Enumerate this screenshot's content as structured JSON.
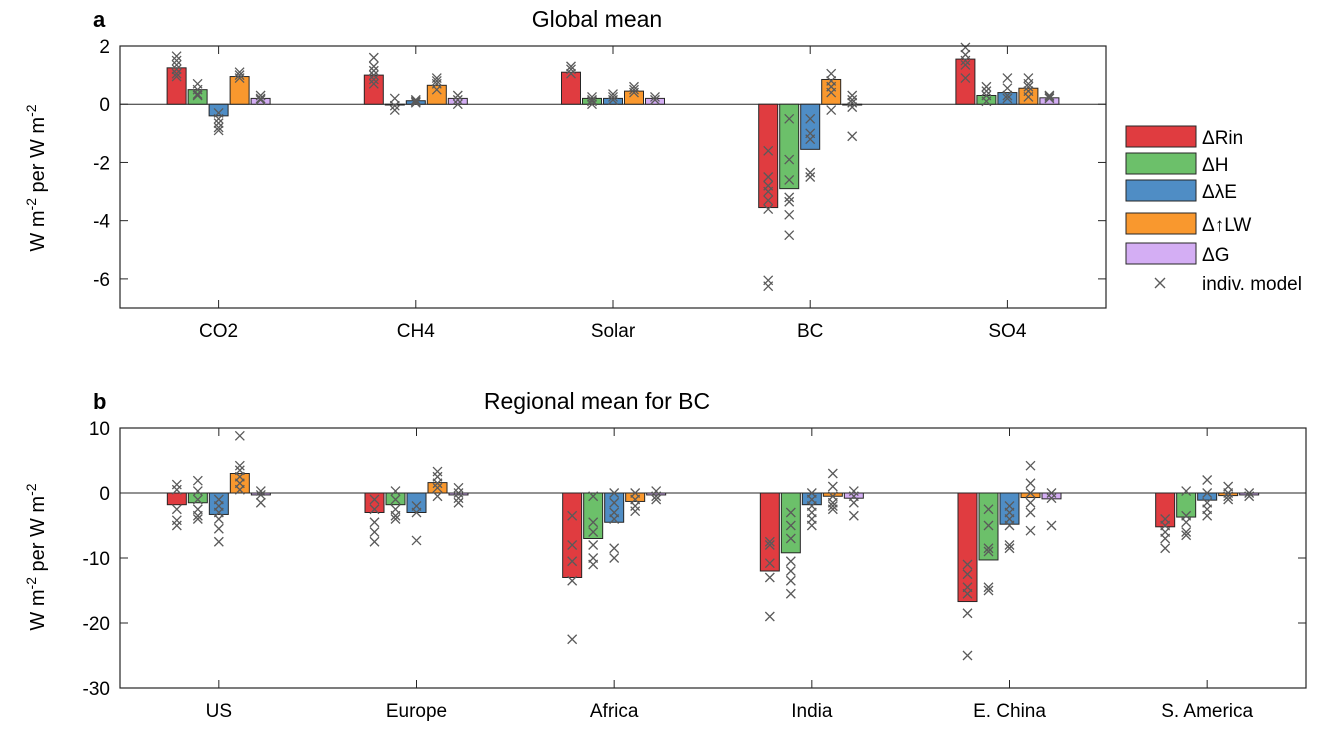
{
  "legend": {
    "labels": [
      "ΔRin",
      "ΔH",
      "ΔλE",
      "Δ↑LW",
      "ΔG"
    ],
    "marker_label": "indiv. model"
  },
  "colors": {
    "series": [
      "#e03c40",
      "#6cc06a",
      "#4f8dc5",
      "#f9982e",
      "#d4aef4"
    ],
    "marker": "#5a5a5a",
    "axis": "#262626"
  },
  "chart_data": [
    {
      "type": "bar",
      "panel_letter": "a",
      "title": "Global mean",
      "ylabel": "W m-2 per W m-2",
      "ylabel_parts": [
        "W m",
        "-2",
        " per W m",
        "-2"
      ],
      "ylim": [
        -7,
        2
      ],
      "yticks": [
        2,
        0,
        -2,
        -4,
        -6
      ],
      "categories": [
        "CO2",
        "CH4",
        "Solar",
        "BC",
        "SO4"
      ],
      "series": [
        {
          "name": "ΔRin",
          "values": [
            1.25,
            1.0,
            1.1,
            -3.55,
            1.55
          ]
        },
        {
          "name": "ΔH",
          "values": [
            0.5,
            0.0,
            0.2,
            -2.9,
            0.3
          ]
        },
        {
          "name": "ΔλE",
          "values": [
            -0.4,
            0.12,
            0.2,
            -1.55,
            0.4
          ]
        },
        {
          "name": "Δ↑LW",
          "values": [
            0.95,
            0.65,
            0.45,
            0.85,
            0.55
          ]
        },
        {
          "name": "ΔG",
          "values": [
            0.2,
            0.2,
            0.2,
            0.0,
            0.22
          ]
        }
      ],
      "individual_models": [
        [
          [
            1.65,
            1.5,
            1.35,
            1.2,
            1.05,
            0.95
          ],
          [
            0.7,
            0.5,
            0.35,
            0.3
          ],
          [
            -0.3,
            -0.5,
            -0.65,
            -0.8,
            -0.9
          ],
          [
            1.1,
            1.0,
            0.9
          ],
          [
            0.3,
            0.2,
            0.15
          ]
        ],
        [
          [
            1.6,
            1.3,
            1.15,
            1.0,
            0.85,
            0.7
          ],
          [
            0.2,
            -0.05,
            -0.2
          ],
          [
            0.15,
            0.1,
            0.05
          ],
          [
            0.9,
            0.8,
            0.7,
            0.5
          ],
          [
            0.3,
            0.15,
            0.0
          ]
        ],
        [
          [
            1.3,
            1.2,
            1.05
          ],
          [
            0.25,
            0.15,
            0.1,
            0.0
          ],
          [
            0.35,
            0.25,
            0.15
          ],
          [
            0.6,
            0.5,
            0.4
          ],
          [
            0.25,
            0.15
          ]
        ],
        [
          [
            -1.6,
            -2.5,
            -2.8,
            -3.0,
            -3.3,
            -3.6,
            -6.05,
            -6.25
          ],
          [
            -0.5,
            -1.9,
            -2.6,
            -3.2,
            -3.35,
            -3.8,
            -4.5
          ],
          [
            -0.5,
            -1.0,
            -1.2,
            -2.35,
            -2.5
          ],
          [
            1.05,
            0.8,
            0.6,
            0.4,
            -0.2
          ],
          [
            0.3,
            0.15,
            0.05,
            -0.1,
            -1.1
          ]
        ],
        [
          [
            1.95,
            1.7,
            1.5,
            1.35,
            0.9
          ],
          [
            0.6,
            0.45,
            0.3,
            0.1
          ],
          [
            0.9,
            0.55,
            0.3,
            0.2
          ],
          [
            0.9,
            0.7,
            0.6,
            0.45,
            0.25
          ],
          [
            0.3,
            0.25,
            0.2
          ]
        ]
      ]
    },
    {
      "type": "bar",
      "panel_letter": "b",
      "title": "Regional mean for BC",
      "ylabel": "W m-2 per W m-2",
      "ylabel_parts": [
        "W m",
        "-2",
        " per W m",
        "-2"
      ],
      "ylim": [
        -30,
        10
      ],
      "yticks": [
        10,
        0,
        -10,
        -20,
        -30
      ],
      "categories": [
        "US",
        "Europe",
        "Africa",
        "India",
        "E. China",
        "S. America"
      ],
      "series": [
        {
          "name": "ΔRin",
          "values": [
            -1.8,
            -3.0,
            -13.0,
            -12.0,
            -16.7,
            -5.2
          ]
        },
        {
          "name": "ΔH",
          "values": [
            -1.5,
            -1.8,
            -7.0,
            -9.2,
            -10.3,
            -3.7
          ]
        },
        {
          "name": "ΔλE",
          "values": [
            -3.3,
            -3.0,
            -4.5,
            -1.8,
            -4.8,
            -1.1
          ]
        },
        {
          "name": "Δ↑LW",
          "values": [
            3.0,
            1.6,
            -1.3,
            -0.5,
            -0.7,
            -0.4
          ]
        },
        {
          "name": "ΔG",
          "values": [
            -0.3,
            -0.3,
            -0.3,
            -0.8,
            -0.9,
            -0.3
          ]
        }
      ],
      "individual_models": [
        [
          [
            1.3,
            0.5,
            -2.5,
            -4.2,
            -5.0
          ],
          [
            1.9,
            0.3,
            -1.0,
            -2.5,
            -3.5,
            -4.0
          ],
          [
            -1.0,
            -2.0,
            -3.0,
            -4.0,
            -5.5,
            -7.5
          ],
          [
            8.8,
            4.2,
            3.5,
            2.5,
            1.5,
            0.5
          ],
          [
            0.3,
            -0.3,
            -1.5
          ]
        ],
        [
          [
            -1.0,
            -2.5,
            -4.5,
            -6.0,
            -7.5
          ],
          [
            0.3,
            -1.0,
            -2.5,
            -3.5,
            -4.0
          ],
          [
            -2.0,
            -3.0,
            -7.3
          ],
          [
            3.3,
            2.5,
            1.5,
            0.8,
            -0.5
          ],
          [
            0.8,
            0.0,
            -0.8,
            -1.5
          ]
        ],
        [
          [
            -3.5,
            -8.0,
            -10.5,
            -13.5,
            -22.5
          ],
          [
            -0.5,
            -4.5,
            -6.0,
            -8.0,
            -10.0,
            -11.0
          ],
          [
            0.0,
            -1.5,
            -3.0,
            -4.0,
            -8.5,
            -10.0
          ],
          [
            0.0,
            -1.0,
            -2.0,
            -2.8
          ],
          [
            0.3,
            -0.5,
            -1.0
          ]
        ],
        [
          [
            -7.5,
            -8.0,
            -10.8,
            -13.0,
            -19.0
          ],
          [
            -3.0,
            -5.0,
            -7.0,
            -10.5,
            -12.0,
            -13.5,
            -15.5
          ],
          [
            0.0,
            -1.0,
            -2.0,
            -3.0,
            -4.0,
            -5.0
          ],
          [
            3.0,
            1.0,
            -0.5,
            -1.5,
            -2.0,
            -2.5
          ],
          [
            0.3,
            -0.5,
            -1.5,
            -3.5
          ]
        ],
        [
          [
            -11.0,
            -12.5,
            -14.5,
            -15.5,
            -18.5,
            -25.0
          ],
          [
            -2.5,
            -5.0,
            -8.5,
            -9.0,
            -14.5,
            -15.0
          ],
          [
            -2.0,
            -3.0,
            -4.0,
            -5.0,
            -8.0,
            -8.5
          ],
          [
            4.2,
            1.5,
            0.0,
            -1.5,
            -3.0,
            -5.8
          ],
          [
            0.0,
            -0.8,
            -5.0
          ]
        ],
        [
          [
            -4.0,
            -5.0,
            -6.0,
            -7.0,
            -8.5
          ],
          [
            0.3,
            -3.5,
            -4.5,
            -6.0,
            -6.5
          ],
          [
            2.0,
            0.0,
            -1.5,
            -2.5,
            -3.5
          ],
          [
            1.0,
            0.0,
            -0.5,
            -1.0
          ],
          [
            0.0,
            -0.5
          ]
        ]
      ]
    }
  ]
}
